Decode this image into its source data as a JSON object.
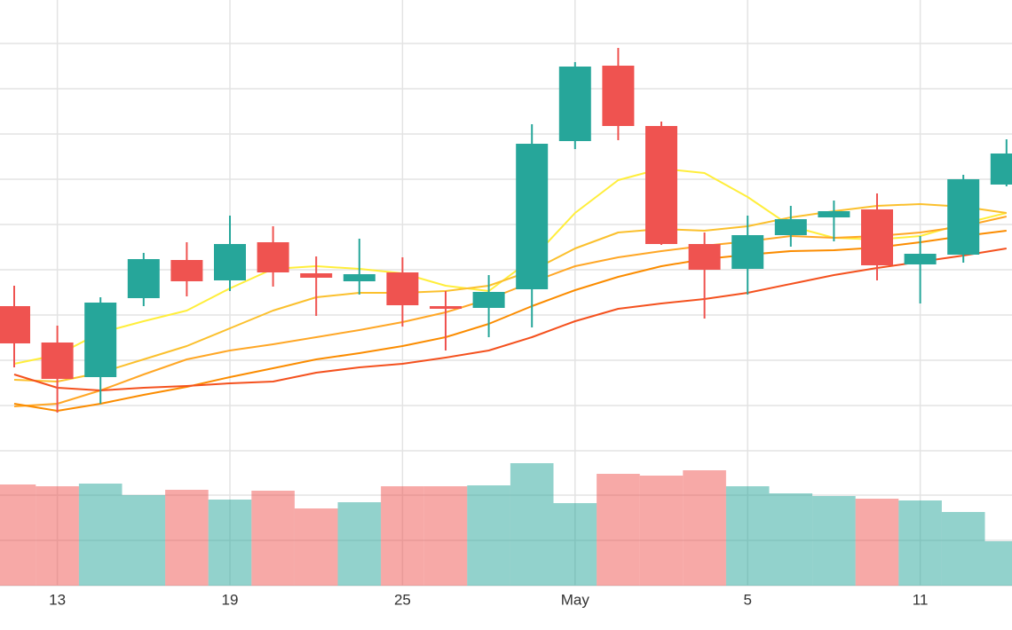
{
  "chart_data": {
    "type": "candlestick",
    "categories": [
      null,
      "13",
      null,
      null,
      null,
      "19",
      null,
      null,
      null,
      "25",
      null,
      null,
      null,
      "May",
      null,
      null,
      null,
      "5",
      null,
      null,
      null,
      "11",
      null,
      null
    ],
    "open": [
      163,
      122,
      83,
      172,
      215,
      192,
      235,
      200,
      191,
      201,
      163,
      161,
      182,
      349,
      434,
      366,
      233,
      205,
      243,
      263,
      272,
      210,
      221,
      300
    ],
    "close": [
      121,
      81,
      167,
      216,
      191,
      233,
      201,
      195,
      199,
      164,
      160,
      179,
      346,
      433,
      366,
      233,
      204,
      243,
      261,
      270,
      209,
      222,
      306,
      335
    ],
    "high": [
      186,
      141,
      173,
      223,
      235,
      265,
      253,
      219,
      239,
      218,
      180,
      198,
      368,
      438,
      454,
      371,
      246,
      265,
      276,
      282,
      290,
      242,
      311,
      351
    ],
    "low": [
      94,
      43,
      53,
      163,
      174,
      180,
      185,
      152,
      176,
      140,
      113,
      128,
      139,
      340,
      350,
      232,
      149,
      176,
      230,
      236,
      192,
      166,
      212,
      298
    ],
    "up_color": "#26a69a",
    "down_color": "#ef5350",
    "ylim": [
      0,
      508
    ],
    "yticks": [
      0,
      51,
      102,
      153,
      204,
      255,
      306,
      357,
      408,
      459
    ],
    "grid": true,
    "series": [
      {
        "color": "#ffee3b",
        "values": [
          98,
          108,
          133,
          146,
          158,
          183,
          205,
          208,
          205,
          200,
          186,
          180,
          216,
          268,
          305,
          318,
          313,
          286,
          253,
          240,
          238,
          242,
          256,
          268
        ]
      },
      {
        "color": "#fbc02d",
        "values": [
          80,
          78,
          88,
          103,
          118,
          138,
          158,
          173,
          178,
          178,
          180,
          186,
          203,
          228,
          246,
          250,
          248,
          253,
          263,
          270,
          276,
          278,
          275,
          268
        ]
      },
      {
        "color": "#ffa726",
        "values": [
          50,
          53,
          68,
          86,
          103,
          113,
          120,
          128,
          136,
          145,
          156,
          171,
          190,
          208,
          218,
          225,
          231,
          236,
          242,
          240,
          242,
          246,
          253,
          264
        ]
      },
      {
        "color": "#fb8c00",
        "values": [
          53,
          45,
          53,
          63,
          72,
          83,
          93,
          103,
          110,
          118,
          128,
          143,
          163,
          181,
          196,
          208,
          216,
          221,
          225,
          226,
          229,
          235,
          242,
          248
        ]
      },
      {
        "color": "#f4511e",
        "values": [
          86,
          71,
          68,
          71,
          73,
          76,
          78,
          88,
          94,
          98,
          105,
          113,
          128,
          146,
          160,
          166,
          171,
          178,
          188,
          198,
          206,
          213,
          220,
          228
        ]
      }
    ],
    "volume": {
      "values": [
        114,
        112,
        115,
        102,
        108,
        97,
        107,
        87,
        94,
        112,
        112,
        113,
        138,
        93,
        126,
        124,
        130,
        112,
        104,
        101,
        98,
        96,
        83,
        50
      ],
      "ylim": [
        0,
        152
      ],
      "yticks": [
        0,
        51,
        102
      ]
    }
  }
}
